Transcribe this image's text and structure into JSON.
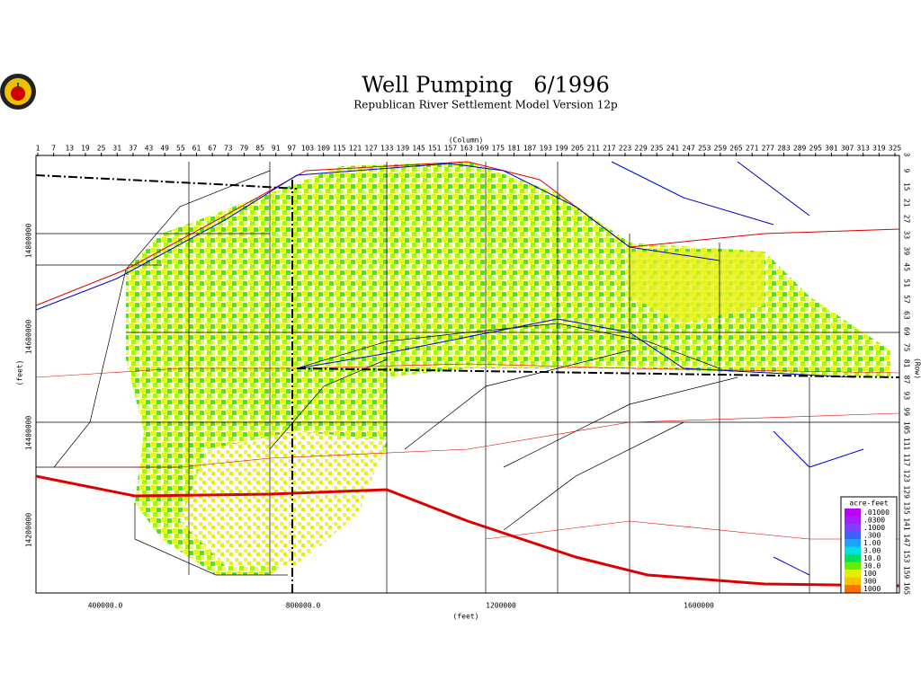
{
  "header": {
    "title": "Well Pumping   6/1996",
    "subtitle": "Republican River Settlement Model Version 12p"
  },
  "columns": {
    "label": "(Column)",
    "ticks": [
      1,
      7,
      13,
      19,
      25,
      31,
      37,
      43,
      49,
      55,
      61,
      67,
      73,
      79,
      85,
      91,
      97,
      103,
      109,
      115,
      121,
      127,
      133,
      139,
      145,
      151,
      157,
      163,
      169,
      175,
      181,
      187,
      193,
      199,
      205,
      211,
      217,
      223,
      229,
      235,
      241,
      247,
      253,
      259,
      265,
      271,
      277,
      283,
      289,
      295,
      301,
      307,
      313,
      319,
      325
    ]
  },
  "rows": {
    "label": "(Row)",
    "ticks": [
      3,
      9,
      15,
      21,
      27,
      33,
      39,
      45,
      51,
      57,
      63,
      69,
      75,
      81,
      87,
      93,
      99,
      105,
      111,
      117,
      123,
      129,
      135,
      141,
      147,
      153,
      159,
      165
    ]
  },
  "y_axis": {
    "label": "(feet)",
    "ticks": [
      "14800000",
      "14600000",
      "14400000",
      "14200000"
    ]
  },
  "x_axis": {
    "label": "(feet)",
    "ticks": [
      "400000.0",
      "800000.0",
      "1200000",
      "1600000"
    ]
  },
  "legend": {
    "title": "acre-feet",
    "entries": [
      {
        "label": ".01000",
        "color": "#c000ff"
      },
      {
        "label": ".0300",
        "color": "#a020ff"
      },
      {
        "label": ".1000",
        "color": "#8040ff"
      },
      {
        "label": ".300",
        "color": "#4060ff"
      },
      {
        "label": "1.00",
        "color": "#20a0ff"
      },
      {
        "label": "3.00",
        "color": "#00e0e0"
      },
      {
        "label": "10.0",
        "color": "#00e060"
      },
      {
        "label": "30.0",
        "color": "#60f000"
      },
      {
        "label": "100",
        "color": "#e0f000"
      },
      {
        "label": "300",
        "color": "#ffc000"
      },
      {
        "label": "1000",
        "color": "#ff7000"
      }
    ]
  }
}
